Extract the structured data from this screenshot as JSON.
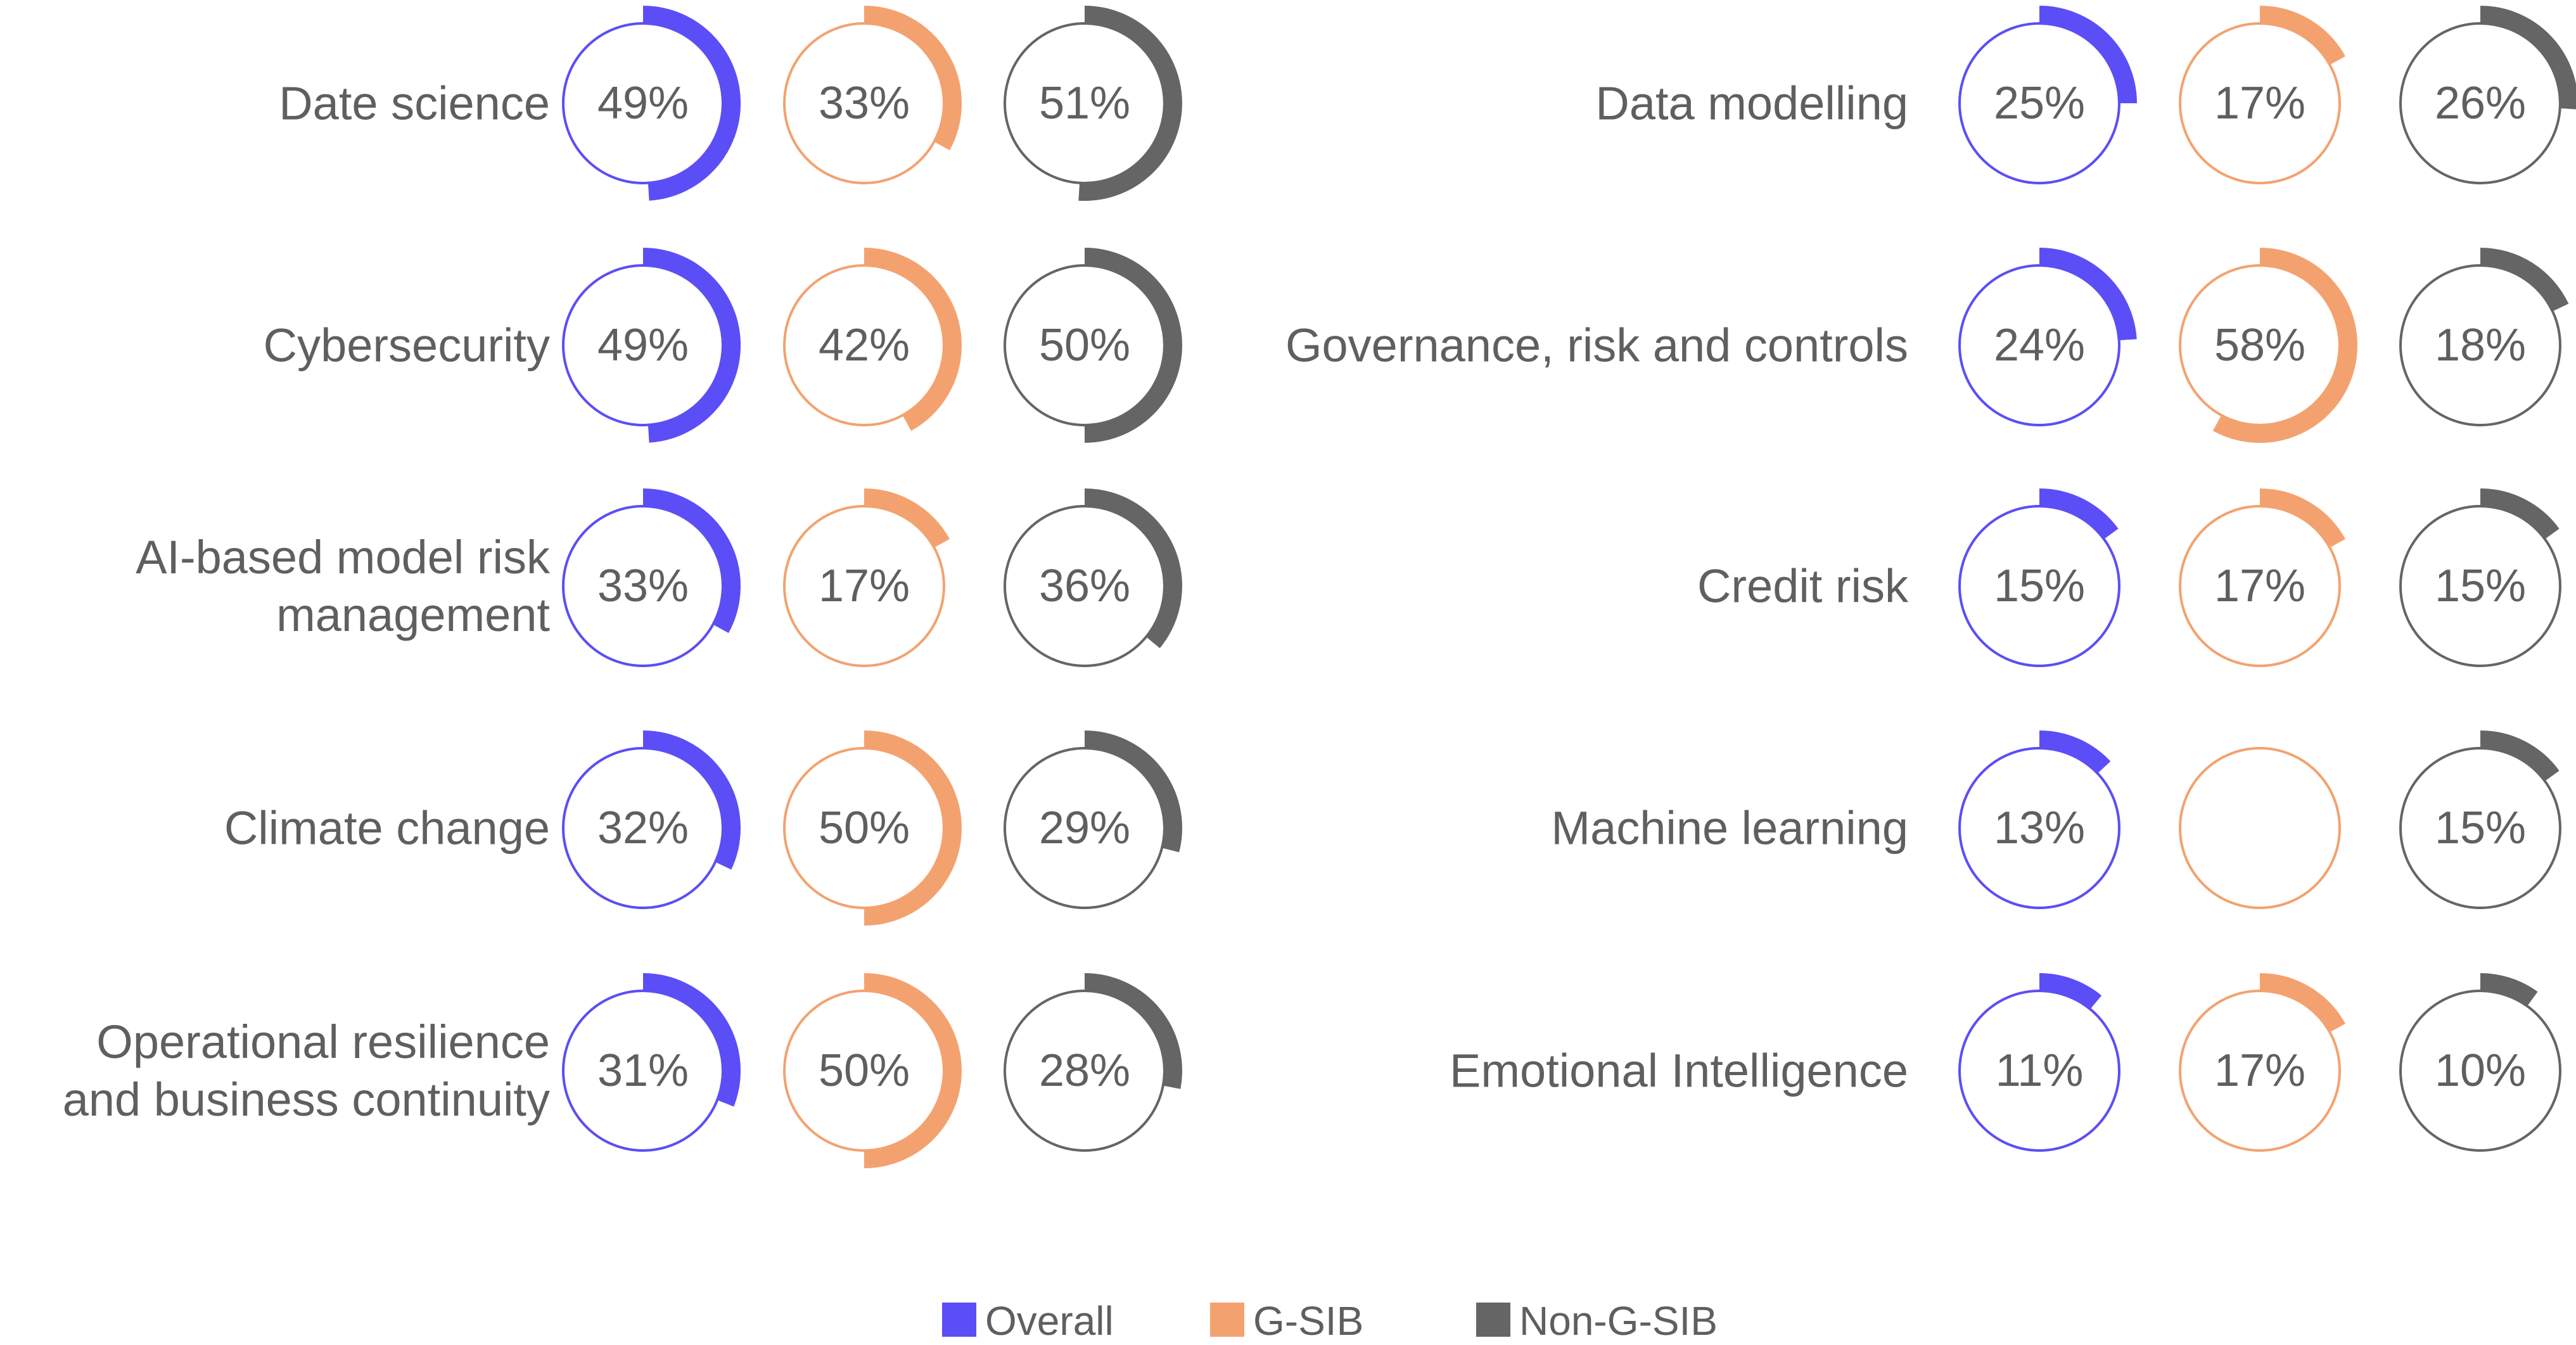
{
  "chart_data": {
    "type": "donut-grid",
    "series": [
      {
        "name": "Overall",
        "color": "#5b4ef6"
      },
      {
        "name": "G-SIB",
        "color": "#f3a26f"
      },
      {
        "name": "Non-G-SIB",
        "color": "#656565"
      }
    ],
    "legend_position": "bottom-center",
    "panels": [
      {
        "rows": [
          {
            "label": [
              "Date science"
            ],
            "values": [
              49,
              33,
              51
            ],
            "shown": [
              "49%",
              "33%",
              "51%"
            ]
          },
          {
            "label": [
              "Cybersecurity"
            ],
            "values": [
              49,
              42,
              50
            ],
            "shown": [
              "49%",
              "42%",
              "50%"
            ]
          },
          {
            "label": [
              "AI-based model risk",
              "management"
            ],
            "values": [
              33,
              17,
              36
            ],
            "shown": [
              "33%",
              "17%",
              "36%"
            ]
          },
          {
            "label": [
              "Climate change"
            ],
            "values": [
              32,
              50,
              29
            ],
            "shown": [
              "32%",
              "50%",
              "29%"
            ]
          },
          {
            "label": [
              "Operational resilience",
              "and business continuity"
            ],
            "values": [
              31,
              50,
              28
            ],
            "shown": [
              "31%",
              "50%",
              "28%"
            ]
          }
        ]
      },
      {
        "rows": [
          {
            "label": [
              "Data modelling"
            ],
            "values": [
              25,
              17,
              26
            ],
            "shown": [
              "25%",
              "17%",
              "26%"
            ]
          },
          {
            "label": [
              "Governance, risk and controls"
            ],
            "values": [
              24,
              58,
              18
            ],
            "shown": [
              "24%",
              "58%",
              "18%"
            ]
          },
          {
            "label": [
              "Credit risk"
            ],
            "values": [
              15,
              17,
              15
            ],
            "shown": [
              "15%",
              "17%",
              "15%"
            ]
          },
          {
            "label": [
              "Machine learning"
            ],
            "values": [
              13,
              0,
              15
            ],
            "shown": [
              "13%",
              "",
              "15%"
            ]
          },
          {
            "label": [
              "Emotional Intelligence"
            ],
            "values": [
              11,
              17,
              10
            ],
            "shown": [
              "11%",
              "17%",
              "10%"
            ]
          }
        ]
      }
    ]
  }
}
